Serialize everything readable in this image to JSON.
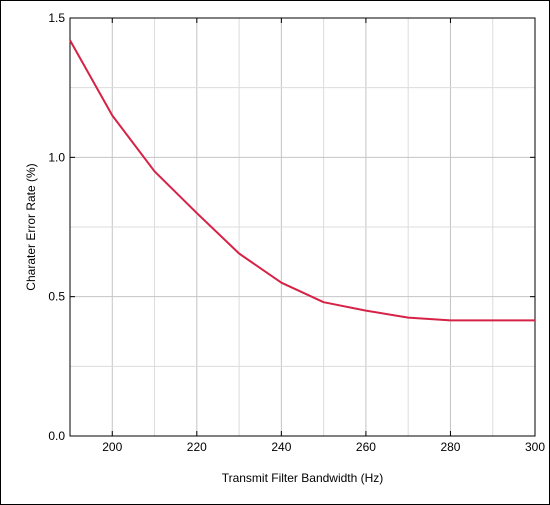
{
  "chart_data": {
    "type": "line",
    "title": "",
    "xlabel": "Transmit Filter Bandwidth (Hz)",
    "ylabel": "Charater Error Rate (%)",
    "xlim": [
      190,
      300
    ],
    "ylim": [
      0,
      1.5
    ],
    "xticks": [
      200,
      220,
      240,
      260,
      280,
      300
    ],
    "xtick_labels": [
      "200",
      "220",
      "240",
      "260",
      "280",
      "300"
    ],
    "yticks": [
      0,
      0.5,
      1.0,
      1.5
    ],
    "ytick_labels": [
      "0.0",
      "0.5",
      "1.0",
      "1.5"
    ],
    "grid": true,
    "series": [
      {
        "color": "#d62246",
        "x": [
          190,
          200,
          210,
          220,
          230,
          240,
          250,
          260,
          270,
          280,
          290,
          300
        ],
        "y": [
          1.42,
          1.15,
          0.95,
          0.8,
          0.655,
          0.55,
          0.48,
          0.45,
          0.425,
          0.415,
          0.415,
          0.415
        ]
      }
    ]
  }
}
